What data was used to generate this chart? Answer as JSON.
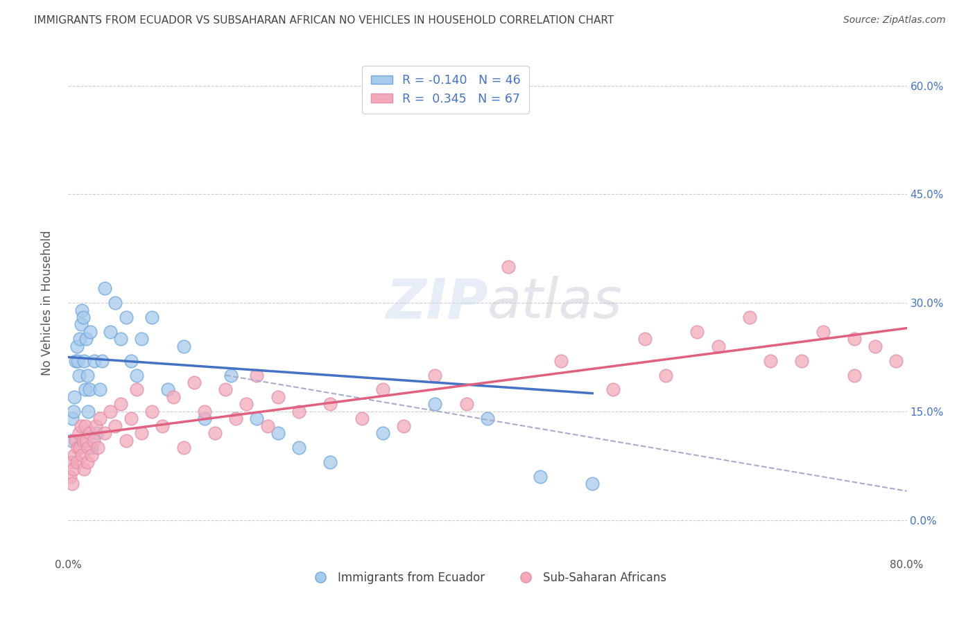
{
  "title": "IMMIGRANTS FROM ECUADOR VS SUBSAHARAN AFRICAN NO VEHICLES IN HOUSEHOLD CORRELATION CHART",
  "source": "Source: ZipAtlas.com",
  "ylabel": "No Vehicles in Household",
  "ylabel_right_ticks": [
    "60.0%",
    "45.0%",
    "30.0%",
    "15.0%",
    "0.0%"
  ],
  "ylabel_right_vals": [
    60.0,
    45.0,
    30.0,
    15.0,
    0.0
  ],
  "xmin": 0.0,
  "xmax": 80.0,
  "ymin": -5.0,
  "ymax": 65.0,
  "legend_blue_R": "-0.140",
  "legend_blue_N": "46",
  "legend_pink_R": "0.345",
  "legend_pink_N": "67",
  "color_blue_fill": "#A8CAEC",
  "color_blue_edge": "#6FA8DC",
  "color_blue_line": "#4472C4",
  "color_pink_fill": "#F4AABC",
  "color_pink_edge": "#E090A8",
  "color_pink_line": "#E06080",
  "color_gray_dashed": "#AAAACC",
  "color_grid": "#CCCCCC",
  "background": "#FFFFFF",
  "ecuador_x": [
    0.3,
    0.4,
    0.5,
    0.6,
    0.7,
    0.8,
    0.9,
    1.0,
    1.1,
    1.2,
    1.3,
    1.4,
    1.5,
    1.6,
    1.7,
    1.8,
    1.9,
    2.0,
    2.1,
    2.2,
    2.5,
    2.7,
    3.0,
    3.2,
    3.5,
    4.0,
    4.5,
    5.0,
    5.5,
    6.0,
    6.5,
    7.0,
    8.0,
    9.5,
    11.0,
    13.0,
    15.5,
    18.0,
    20.0,
    22.0,
    25.0,
    30.0,
    35.0,
    40.0,
    45.0,
    50.0
  ],
  "ecuador_y": [
    11,
    14,
    15,
    17,
    22,
    24,
    22,
    20,
    25,
    27,
    29,
    28,
    22,
    18,
    25,
    20,
    15,
    18,
    26,
    10,
    22,
    12,
    18,
    22,
    32,
    26,
    30,
    25,
    28,
    22,
    20,
    25,
    28,
    18,
    24,
    14,
    20,
    14,
    12,
    10,
    8,
    12,
    16,
    14,
    6,
    5
  ],
  "subsaharan_x": [
    0.2,
    0.3,
    0.4,
    0.5,
    0.6,
    0.7,
    0.8,
    0.9,
    1.0,
    1.1,
    1.2,
    1.3,
    1.4,
    1.5,
    1.6,
    1.7,
    1.8,
    1.9,
    2.0,
    2.2,
    2.4,
    2.6,
    2.8,
    3.0,
    3.5,
    4.0,
    4.5,
    5.0,
    5.5,
    6.0,
    6.5,
    7.0,
    8.0,
    9.0,
    10.0,
    11.0,
    12.0,
    13.0,
    14.0,
    15.0,
    16.0,
    17.0,
    18.0,
    19.0,
    20.0,
    22.0,
    25.0,
    28.0,
    30.0,
    32.0,
    35.0,
    38.0,
    42.0,
    47.0,
    52.0,
    57.0,
    62.0,
    67.0,
    72.0,
    75.0,
    77.0,
    79.0,
    55.0,
    60.0,
    65.0,
    70.0,
    75.0
  ],
  "subsaharan_y": [
    6,
    8,
    5,
    7,
    9,
    11,
    8,
    10,
    12,
    10,
    13,
    9,
    11,
    7,
    13,
    11,
    8,
    10,
    12,
    9,
    11,
    13,
    10,
    14,
    12,
    15,
    13,
    16,
    11,
    14,
    18,
    12,
    15,
    13,
    17,
    10,
    19,
    15,
    12,
    18,
    14,
    16,
    20,
    13,
    17,
    15,
    16,
    14,
    18,
    13,
    20,
    16,
    35,
    22,
    18,
    20,
    24,
    22,
    26,
    20,
    24,
    22,
    25,
    26,
    28,
    22,
    25
  ],
  "ec_line_x0": 0.0,
  "ec_line_x1": 50.0,
  "ec_line_y0": 22.5,
  "ec_line_y1": 17.5,
  "ss_line_x0": 0.0,
  "ss_line_x1": 80.0,
  "ss_line_y0": 11.5,
  "ss_line_y1": 26.5,
  "dash_line_x0": 15.0,
  "dash_line_x1": 80.0,
  "dash_line_y0": 20.0,
  "dash_line_y1": 4.0
}
